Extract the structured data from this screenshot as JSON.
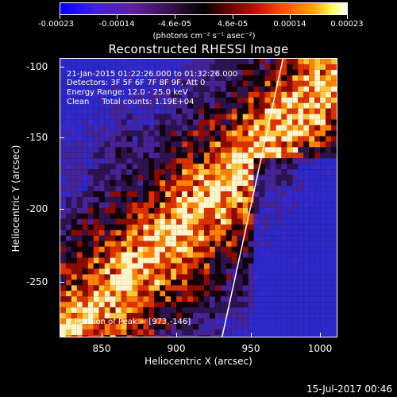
{
  "colorbar": {
    "tick_labels": [
      "-0.00023",
      "-0.00014",
      "-4.6e-05",
      "4.6e-05",
      "0.00014",
      "0.00023"
    ],
    "unit": "(photons cm⁻² s⁻¹ asec⁻²)"
  },
  "plot": {
    "title": "Reconstructed RHESSI Image",
    "info": {
      "time_range": "21-Jan-2015 01:22:26.000 to 01:32:26.000",
      "detectors": "Detectors: 3F 5F 6F 7F 8F 9F, Att 0",
      "energy_range": "Energy Range: 12.0 - 25.0 keV",
      "clean_counts": "Clean     Total counts: 1.19E+04"
    },
    "peak": "Position of Peak = [973,-146]",
    "x_axis_label": "Heliocentric X (arcsec)",
    "y_axis_label": "Heliocentric Y (arcsec)",
    "x_ticks": [
      "850",
      "900",
      "950",
      "1000"
    ],
    "y_ticks": [
      "-100",
      "-150",
      "-200",
      "-250"
    ]
  },
  "footer": {
    "date": "15-Jul-2017 00:46"
  }
}
